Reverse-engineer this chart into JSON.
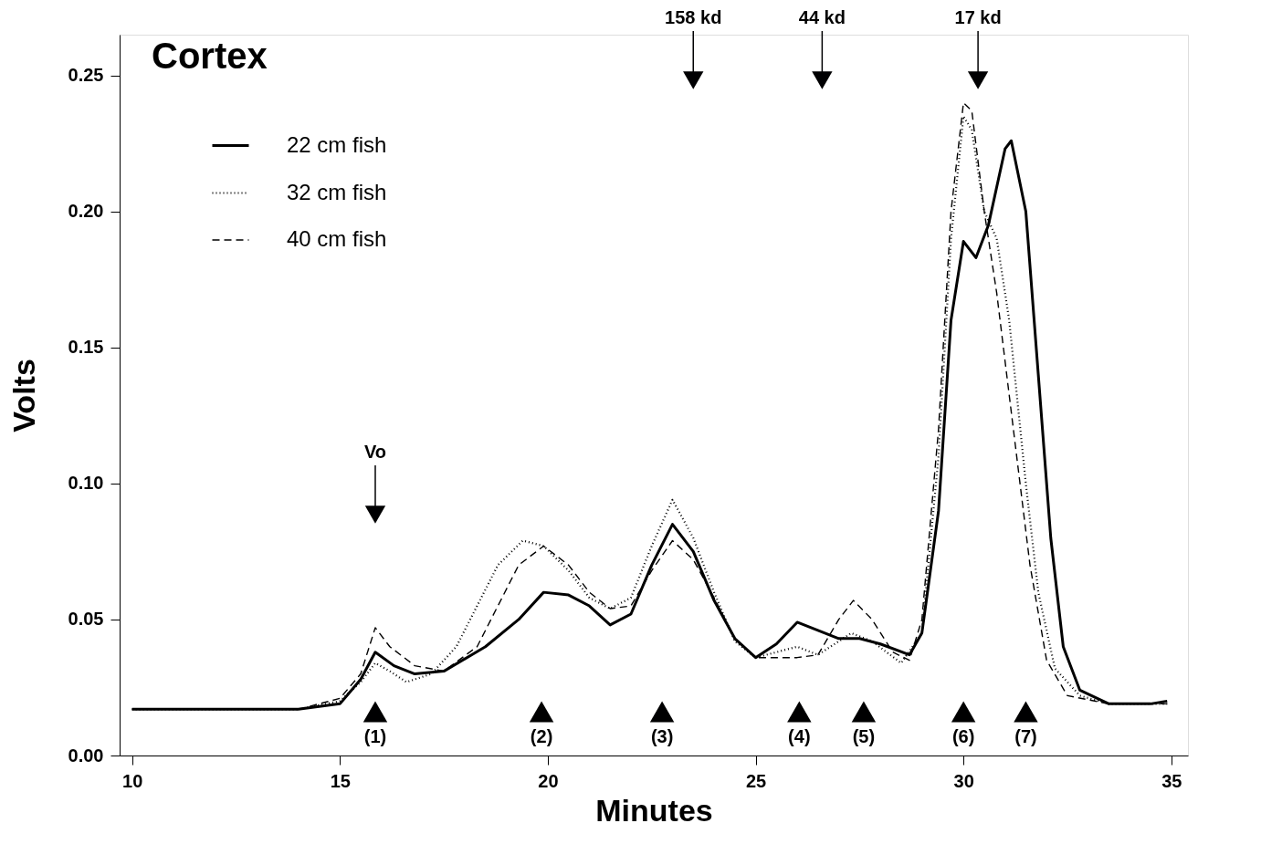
{
  "chart_data": {
    "type": "line",
    "title": "Cortex",
    "xlabel": "Minutes",
    "ylabel": "Volts",
    "xlim": [
      9.7,
      35.4
    ],
    "ylim": [
      0,
      0.265
    ],
    "xticks": [
      10,
      15,
      20,
      25,
      30,
      35
    ],
    "yticks": [
      {
        "value": 0,
        "label": "0.00"
      },
      0.05,
      {
        "value": 0.1,
        "label": "0.10"
      },
      0.15,
      {
        "value": 0.2,
        "label": "0.20"
      },
      0.25
    ],
    "grid": false,
    "legend": "top left",
    "marker": "none",
    "series": [
      {
        "name": "22 cm fish",
        "color": "#000000",
        "line_style": "solid",
        "x": [
          10,
          14,
          15,
          15.5,
          15.85,
          16.3,
          16.8,
          17.5,
          18.5,
          19.3,
          19.9,
          20.5,
          21,
          21.5,
          22,
          22.5,
          23,
          23.5,
          24,
          24.5,
          25,
          25.5,
          26,
          26.5,
          27,
          27.5,
          28,
          28.7,
          29,
          29.4,
          29.7,
          30,
          30.3,
          30.6,
          31,
          31.15,
          31.5,
          31.8,
          32.1,
          32.4,
          32.8,
          33.5,
          34.5,
          34.9
        ],
        "values": [
          0.017,
          0.017,
          0.019,
          0.028,
          0.038,
          0.033,
          0.03,
          0.031,
          0.04,
          0.05,
          0.06,
          0.059,
          0.055,
          0.048,
          0.052,
          0.07,
          0.085,
          0.075,
          0.057,
          0.043,
          0.036,
          0.041,
          0.049,
          0.046,
          0.043,
          0.043,
          0.041,
          0.037,
          0.045,
          0.09,
          0.16,
          0.189,
          0.183,
          0.195,
          0.223,
          0.226,
          0.2,
          0.14,
          0.08,
          0.04,
          0.024,
          0.019,
          0.019,
          0.02
        ]
      },
      {
        "name": "32 cm fish",
        "color": "#000000",
        "line_style": "dotted",
        "x": [
          10,
          14,
          15,
          15.5,
          15.85,
          16.2,
          16.6,
          17.2,
          17.8,
          18.3,
          18.8,
          19.4,
          19.9,
          20.5,
          21,
          21.5,
          22,
          22.5,
          23,
          23.5,
          24,
          24.5,
          25,
          25.5,
          26,
          26.5,
          27,
          27.3,
          27.8,
          28.5,
          29,
          29.4,
          29.7,
          30,
          30.2,
          30.5,
          30.8,
          31.1,
          31.5,
          31.8,
          32.2,
          32.8,
          33.5,
          34.9
        ],
        "values": [
          0.017,
          0.017,
          0.02,
          0.027,
          0.034,
          0.031,
          0.027,
          0.03,
          0.04,
          0.055,
          0.07,
          0.079,
          0.077,
          0.068,
          0.058,
          0.054,
          0.058,
          0.077,
          0.094,
          0.08,
          0.06,
          0.042,
          0.036,
          0.038,
          0.04,
          0.037,
          0.042,
          0.045,
          0.042,
          0.034,
          0.045,
          0.11,
          0.19,
          0.235,
          0.23,
          0.2,
          0.19,
          0.16,
          0.1,
          0.06,
          0.032,
          0.022,
          0.019,
          0.019
        ]
      },
      {
        "name": "40 cm fish",
        "color": "#000000",
        "line_style": "dashed",
        "x": [
          10,
          14,
          15,
          15.5,
          15.85,
          16.2,
          16.8,
          17.5,
          18.3,
          18.8,
          19.3,
          19.9,
          20.5,
          21,
          21.5,
          22,
          22.5,
          23,
          23.5,
          24,
          24.5,
          25,
          26,
          26.5,
          27,
          27.35,
          27.8,
          28.3,
          28.7,
          29,
          29.4,
          29.7,
          30,
          30.2,
          30.5,
          30.8,
          31.2,
          31.6,
          32,
          32.5,
          33.5,
          34.9
        ],
        "values": [
          0.017,
          0.017,
          0.021,
          0.03,
          0.047,
          0.04,
          0.033,
          0.031,
          0.04,
          0.055,
          0.07,
          0.077,
          0.07,
          0.06,
          0.054,
          0.055,
          0.068,
          0.079,
          0.072,
          0.058,
          0.043,
          0.036,
          0.036,
          0.037,
          0.05,
          0.057,
          0.05,
          0.038,
          0.035,
          0.05,
          0.12,
          0.2,
          0.24,
          0.237,
          0.2,
          0.17,
          0.12,
          0.07,
          0.035,
          0.022,
          0.019,
          0.019
        ]
      }
    ],
    "annotations": [
      "Vo",
      "158 kd",
      "44 kd",
      "17 kd",
      "(1)",
      "(2)",
      "(3)",
      "(4)",
      "(5)",
      "(6)",
      "(7)"
    ]
  }
}
